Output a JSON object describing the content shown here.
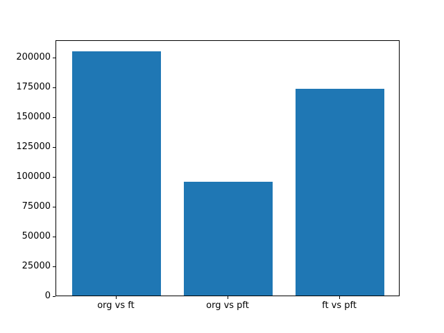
{
  "figure": {
    "background": "#ffffff",
    "axes_frame_color": "#000000",
    "tick_color": "#000000",
    "text_color": "#000000"
  },
  "chart_data": {
    "type": "bar",
    "title": "",
    "xlabel": "",
    "ylabel": "",
    "categories": [
      "org vs ft",
      "org vs pft",
      "ft vs pft"
    ],
    "values": [
      204800,
      95500,
      173400
    ],
    "bar_color": "#1f77b4",
    "bar_width_fraction": 0.8,
    "ylim": [
      0,
      215000
    ],
    "yticks": [
      0,
      25000,
      50000,
      75000,
      100000,
      125000,
      150000,
      175000,
      200000
    ],
    "ytick_labels": [
      "0",
      "25000",
      "50000",
      "75000",
      "100000",
      "125000",
      "150000",
      "175000",
      "200000"
    ],
    "grid": false,
    "legend": "none"
  }
}
